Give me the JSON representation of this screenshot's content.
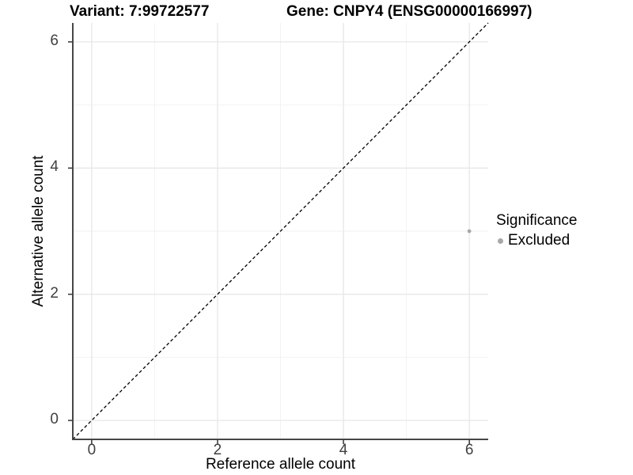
{
  "header": {
    "variant_title": "Variant: 7:99722577",
    "gene_title": "Gene: CNPY4 (ENSG00000166997)"
  },
  "legend": {
    "title": "Significance",
    "items": [
      {
        "label": "Excluded",
        "color": "#a8a8a8"
      }
    ]
  },
  "chart_data": {
    "type": "scatter",
    "title": "Variant: 7:99722577   Gene: CNPY4 (ENSG00000166997)",
    "xlabel": "Reference allele count",
    "ylabel": "Alternative allele count",
    "xlim": [
      -0.3,
      6.3
    ],
    "ylim": [
      -0.3,
      6.3
    ],
    "x_ticks": [
      0,
      2,
      4,
      6
    ],
    "y_ticks": [
      0,
      2,
      4,
      6
    ],
    "x_minor_ticks": [
      1,
      3,
      5
    ],
    "y_minor_ticks": [
      1,
      3,
      5
    ],
    "grid": true,
    "legend_position": "right",
    "reference_line": {
      "slope": 1,
      "intercept": 0,
      "style": "dashed",
      "color": "#000000"
    },
    "series": [
      {
        "name": "Excluded",
        "color": "#a8a8a8",
        "point_radius": 2.4,
        "points": [
          {
            "x": 6,
            "y": 3
          }
        ]
      }
    ],
    "colors": {
      "background": "#ffffff",
      "major_grid": "#e7e7e7",
      "minor_grid": "#f2f2f2",
      "axis_line": "#464646",
      "tick_mark": "#333333",
      "tick_label": "#404040"
    }
  }
}
